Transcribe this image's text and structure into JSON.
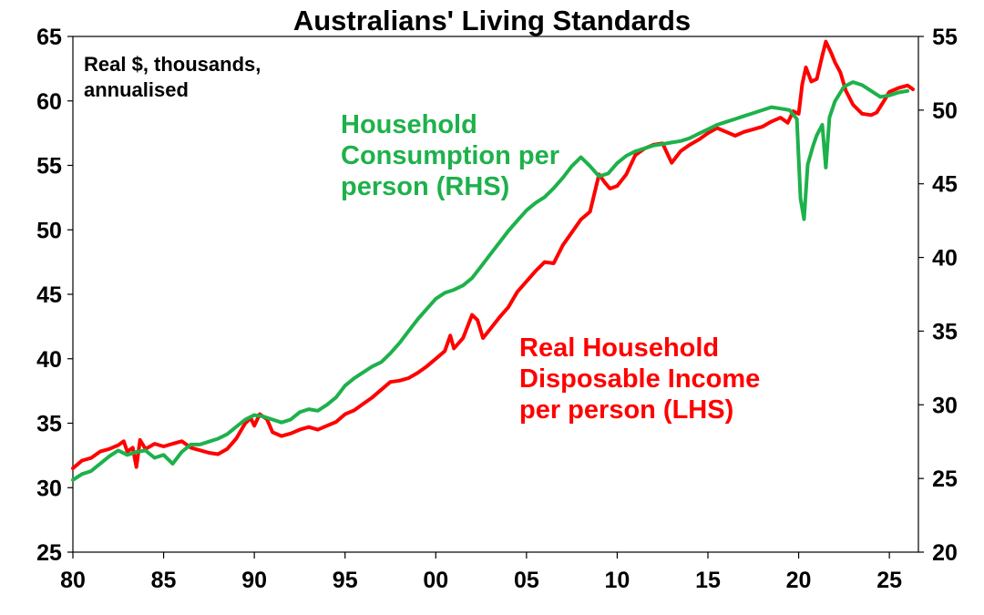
{
  "chart_data": {
    "type": "line",
    "title": "Australians' Living Standards",
    "unit_note": [
      "Real $, thousands,",
      "annualised"
    ],
    "x_tick_labels": [
      "80",
      "85",
      "90",
      "95",
      "00",
      "05",
      "10",
      "15",
      "20",
      "25"
    ],
    "x_tick_years": [
      1980,
      1985,
      1990,
      1995,
      2000,
      2005,
      2010,
      2015,
      2020,
      2025
    ],
    "xlim": [
      1980,
      2026.6
    ],
    "y_left": {
      "lim": [
        25,
        65
      ],
      "ticks": [
        25,
        30,
        35,
        40,
        45,
        50,
        55,
        60,
        65
      ]
    },
    "y_right": {
      "lim": [
        20,
        55
      ],
      "ticks": [
        20,
        25,
        30,
        35,
        40,
        45,
        50,
        55
      ]
    },
    "grid": false,
    "series": [
      {
        "name": "Real Household Disposable Income per person (LHS)",
        "label_lines": [
          "Real Household",
          "Disposable Income",
          "per person (LHS)"
        ],
        "axis": "left",
        "color": "#ff0000",
        "points": [
          [
            1980.0,
            31.5
          ],
          [
            1980.5,
            32.1
          ],
          [
            1981.0,
            32.3
          ],
          [
            1981.5,
            32.8
          ],
          [
            1982.0,
            33.0
          ],
          [
            1982.5,
            33.3
          ],
          [
            1982.8,
            33.6
          ],
          [
            1983.0,
            32.8
          ],
          [
            1983.3,
            33.1
          ],
          [
            1983.5,
            31.6
          ],
          [
            1983.7,
            33.7
          ],
          [
            1984.0,
            33.0
          ],
          [
            1984.5,
            33.4
          ],
          [
            1985.0,
            33.2
          ],
          [
            1985.5,
            33.4
          ],
          [
            1986.0,
            33.6
          ],
          [
            1986.5,
            33.1
          ],
          [
            1987.0,
            32.9
          ],
          [
            1987.5,
            32.7
          ],
          [
            1988.0,
            32.6
          ],
          [
            1988.5,
            33.0
          ],
          [
            1989.0,
            33.8
          ],
          [
            1989.5,
            35.0
          ],
          [
            1989.8,
            35.4
          ],
          [
            1990.0,
            34.8
          ],
          [
            1990.3,
            35.7
          ],
          [
            1990.7,
            35.3
          ],
          [
            1991.0,
            34.3
          ],
          [
            1991.5,
            34.0
          ],
          [
            1992.0,
            34.2
          ],
          [
            1992.5,
            34.5
          ],
          [
            1993.0,
            34.7
          ],
          [
            1993.5,
            34.5
          ],
          [
            1994.0,
            34.8
          ],
          [
            1994.5,
            35.1
          ],
          [
            1995.0,
            35.7
          ],
          [
            1995.5,
            36.0
          ],
          [
            1996.0,
            36.5
          ],
          [
            1996.5,
            37.0
          ],
          [
            1997.0,
            37.6
          ],
          [
            1997.5,
            38.2
          ],
          [
            1998.0,
            38.3
          ],
          [
            1998.5,
            38.5
          ],
          [
            1999.0,
            38.9
          ],
          [
            1999.5,
            39.4
          ],
          [
            2000.0,
            40.0
          ],
          [
            2000.5,
            40.6
          ],
          [
            2000.8,
            41.8
          ],
          [
            2001.0,
            40.8
          ],
          [
            2001.5,
            41.6
          ],
          [
            2002.0,
            43.4
          ],
          [
            2002.3,
            43.0
          ],
          [
            2002.6,
            41.6
          ],
          [
            2003.0,
            42.3
          ],
          [
            2003.5,
            43.2
          ],
          [
            2004.0,
            44.0
          ],
          [
            2004.5,
            45.2
          ],
          [
            2005.0,
            46.0
          ],
          [
            2005.5,
            46.8
          ],
          [
            2006.0,
            47.5
          ],
          [
            2006.5,
            47.4
          ],
          [
            2007.0,
            48.8
          ],
          [
            2007.5,
            49.8
          ],
          [
            2008.0,
            50.8
          ],
          [
            2008.5,
            51.4
          ],
          [
            2009.0,
            54.3
          ],
          [
            2009.3,
            53.7
          ],
          [
            2009.6,
            53.2
          ],
          [
            2010.0,
            53.4
          ],
          [
            2010.5,
            54.3
          ],
          [
            2011.0,
            55.8
          ],
          [
            2011.5,
            56.3
          ],
          [
            2012.0,
            56.6
          ],
          [
            2012.5,
            56.7
          ],
          [
            2013.0,
            55.2
          ],
          [
            2013.5,
            56.1
          ],
          [
            2014.0,
            56.6
          ],
          [
            2014.5,
            57.0
          ],
          [
            2015.0,
            57.5
          ],
          [
            2015.5,
            57.9
          ],
          [
            2016.0,
            57.6
          ],
          [
            2016.5,
            57.3
          ],
          [
            2017.0,
            57.6
          ],
          [
            2017.5,
            57.8
          ],
          [
            2018.0,
            58.0
          ],
          [
            2018.5,
            58.4
          ],
          [
            2019.0,
            58.7
          ],
          [
            2019.4,
            58.3
          ],
          [
            2019.7,
            59.2
          ],
          [
            2020.0,
            59.0
          ],
          [
            2020.2,
            61.3
          ],
          [
            2020.4,
            62.6
          ],
          [
            2020.7,
            61.5
          ],
          [
            2021.0,
            61.7
          ],
          [
            2021.3,
            63.5
          ],
          [
            2021.5,
            64.6
          ],
          [
            2021.8,
            63.7
          ],
          [
            2022.0,
            63.0
          ],
          [
            2022.3,
            62.2
          ],
          [
            2022.6,
            60.8
          ],
          [
            2023.0,
            59.7
          ],
          [
            2023.5,
            59.0
          ],
          [
            2024.0,
            58.9
          ],
          [
            2024.3,
            59.1
          ],
          [
            2024.7,
            60.0
          ],
          [
            2025.0,
            60.7
          ],
          [
            2025.5,
            61.0
          ],
          [
            2026.0,
            61.2
          ],
          [
            2026.3,
            60.9
          ]
        ]
      },
      {
        "name": "Household Consumption per person (RHS)",
        "label_lines": [
          "Household",
          "Consumption per",
          "person (RHS)"
        ],
        "axis": "right",
        "color": "#1eb14b",
        "points": [
          [
            1980.0,
            24.9
          ],
          [
            1980.5,
            25.3
          ],
          [
            1981.0,
            25.5
          ],
          [
            1981.5,
            26.0
          ],
          [
            1982.0,
            26.5
          ],
          [
            1982.5,
            26.9
          ],
          [
            1983.0,
            26.6
          ],
          [
            1983.5,
            26.8
          ],
          [
            1984.0,
            26.9
          ],
          [
            1984.5,
            26.4
          ],
          [
            1985.0,
            26.6
          ],
          [
            1985.5,
            26.0
          ],
          [
            1986.0,
            26.8
          ],
          [
            1986.5,
            27.3
          ],
          [
            1987.0,
            27.3
          ],
          [
            1987.5,
            27.5
          ],
          [
            1988.0,
            27.7
          ],
          [
            1988.5,
            28.0
          ],
          [
            1989.0,
            28.5
          ],
          [
            1989.5,
            29.0
          ],
          [
            1990.0,
            29.3
          ],
          [
            1990.5,
            29.2
          ],
          [
            1991.0,
            29.0
          ],
          [
            1991.5,
            28.8
          ],
          [
            1992.0,
            29.0
          ],
          [
            1992.5,
            29.5
          ],
          [
            1993.0,
            29.7
          ],
          [
            1993.5,
            29.6
          ],
          [
            1994.0,
            30.0
          ],
          [
            1994.5,
            30.5
          ],
          [
            1995.0,
            31.3
          ],
          [
            1995.5,
            31.8
          ],
          [
            1996.0,
            32.2
          ],
          [
            1996.5,
            32.6
          ],
          [
            1997.0,
            32.9
          ],
          [
            1997.5,
            33.5
          ],
          [
            1998.0,
            34.2
          ],
          [
            1998.5,
            35.0
          ],
          [
            1999.0,
            35.8
          ],
          [
            1999.5,
            36.5
          ],
          [
            2000.0,
            37.2
          ],
          [
            2000.5,
            37.6
          ],
          [
            2001.0,
            37.8
          ],
          [
            2001.5,
            38.1
          ],
          [
            2002.0,
            38.6
          ],
          [
            2002.5,
            39.4
          ],
          [
            2003.0,
            40.2
          ],
          [
            2003.5,
            41.0
          ],
          [
            2004.0,
            41.8
          ],
          [
            2004.5,
            42.5
          ],
          [
            2005.0,
            43.2
          ],
          [
            2005.5,
            43.7
          ],
          [
            2006.0,
            44.1
          ],
          [
            2006.5,
            44.7
          ],
          [
            2007.0,
            45.4
          ],
          [
            2007.5,
            46.2
          ],
          [
            2008.0,
            46.8
          ],
          [
            2008.5,
            46.2
          ],
          [
            2009.0,
            45.5
          ],
          [
            2009.5,
            45.7
          ],
          [
            2010.0,
            46.4
          ],
          [
            2010.5,
            46.9
          ],
          [
            2011.0,
            47.2
          ],
          [
            2011.5,
            47.4
          ],
          [
            2012.0,
            47.6
          ],
          [
            2012.5,
            47.7
          ],
          [
            2013.0,
            47.8
          ],
          [
            2013.5,
            47.9
          ],
          [
            2014.0,
            48.1
          ],
          [
            2014.5,
            48.4
          ],
          [
            2015.0,
            48.7
          ],
          [
            2015.5,
            49.0
          ],
          [
            2016.0,
            49.2
          ],
          [
            2016.5,
            49.4
          ],
          [
            2017.0,
            49.6
          ],
          [
            2017.5,
            49.8
          ],
          [
            2018.0,
            50.0
          ],
          [
            2018.5,
            50.2
          ],
          [
            2019.0,
            50.1
          ],
          [
            2019.5,
            50.0
          ],
          [
            2019.9,
            49.4
          ],
          [
            2020.1,
            44.0
          ],
          [
            2020.3,
            42.6
          ],
          [
            2020.5,
            46.3
          ],
          [
            2020.8,
            47.6
          ],
          [
            2021.0,
            48.3
          ],
          [
            2021.3,
            49.0
          ],
          [
            2021.5,
            46.1
          ],
          [
            2021.7,
            49.5
          ],
          [
            2022.0,
            50.6
          ],
          [
            2022.5,
            51.6
          ],
          [
            2023.0,
            51.9
          ],
          [
            2023.5,
            51.7
          ],
          [
            2024.0,
            51.3
          ],
          [
            2024.5,
            50.9
          ],
          [
            2025.0,
            51.0
          ],
          [
            2025.5,
            51.2
          ],
          [
            2026.0,
            51.3
          ]
        ]
      }
    ]
  }
}
